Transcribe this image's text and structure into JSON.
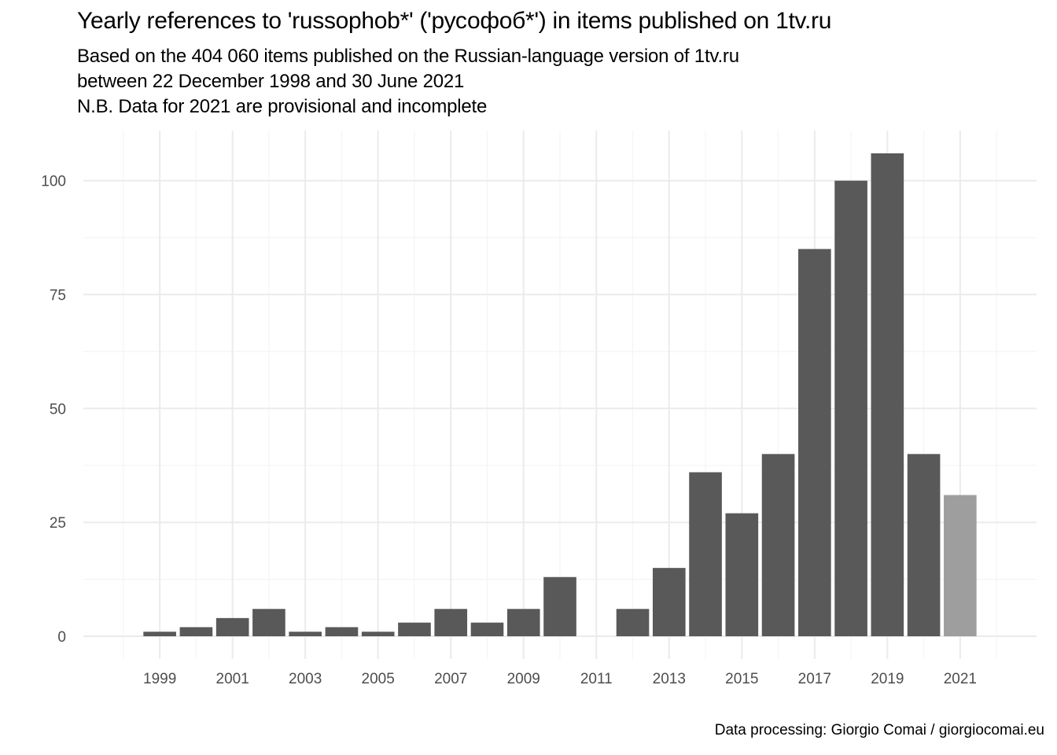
{
  "chart_data": {
    "type": "bar",
    "title": "Yearly references to 'russophob*' ('русофоб*') in items published on 1tv.ru",
    "subtitle": [
      "Based on the  404 060 items published on the Russian-language version of 1tv.ru",
      "between 22 December 1998 and 30 June 2021",
      "N.B. Data for 2021 are provisional and incomplete"
    ],
    "caption": "Data processing: Giorgio Comai / giorgiocomai.eu",
    "xlabel": "",
    "ylabel": "",
    "categories": [
      1999,
      2000,
      2001,
      2002,
      2003,
      2004,
      2005,
      2006,
      2007,
      2008,
      2009,
      2010,
      2011,
      2012,
      2013,
      2014,
      2015,
      2016,
      2017,
      2018,
      2019,
      2020,
      2021
    ],
    "values": [
      1,
      2,
      4,
      6,
      1,
      2,
      1,
      3,
      6,
      3,
      6,
      13,
      0,
      6,
      15,
      36,
      27,
      40,
      85,
      100,
      106,
      40,
      31
    ],
    "provisional": [
      false,
      false,
      false,
      false,
      false,
      false,
      false,
      false,
      false,
      false,
      false,
      false,
      false,
      false,
      false,
      false,
      false,
      false,
      false,
      false,
      false,
      false,
      true
    ],
    "x_ticks": [
      1999,
      2001,
      2003,
      2005,
      2007,
      2009,
      2011,
      2013,
      2015,
      2017,
      2019,
      2021
    ],
    "y_ticks": [
      0,
      25,
      50,
      75,
      100
    ],
    "xlim": [
      1996.9,
      2023.1
    ],
    "ylim": [
      -5,
      111
    ],
    "grid": true,
    "legend": "none",
    "colors": {
      "bar": "#595959",
      "bar_provisional": "#9e9e9e",
      "grid_major": "#ebebeb",
      "grid_minor": "#f4f4f4",
      "tick_text": "#4d4d4d"
    }
  }
}
